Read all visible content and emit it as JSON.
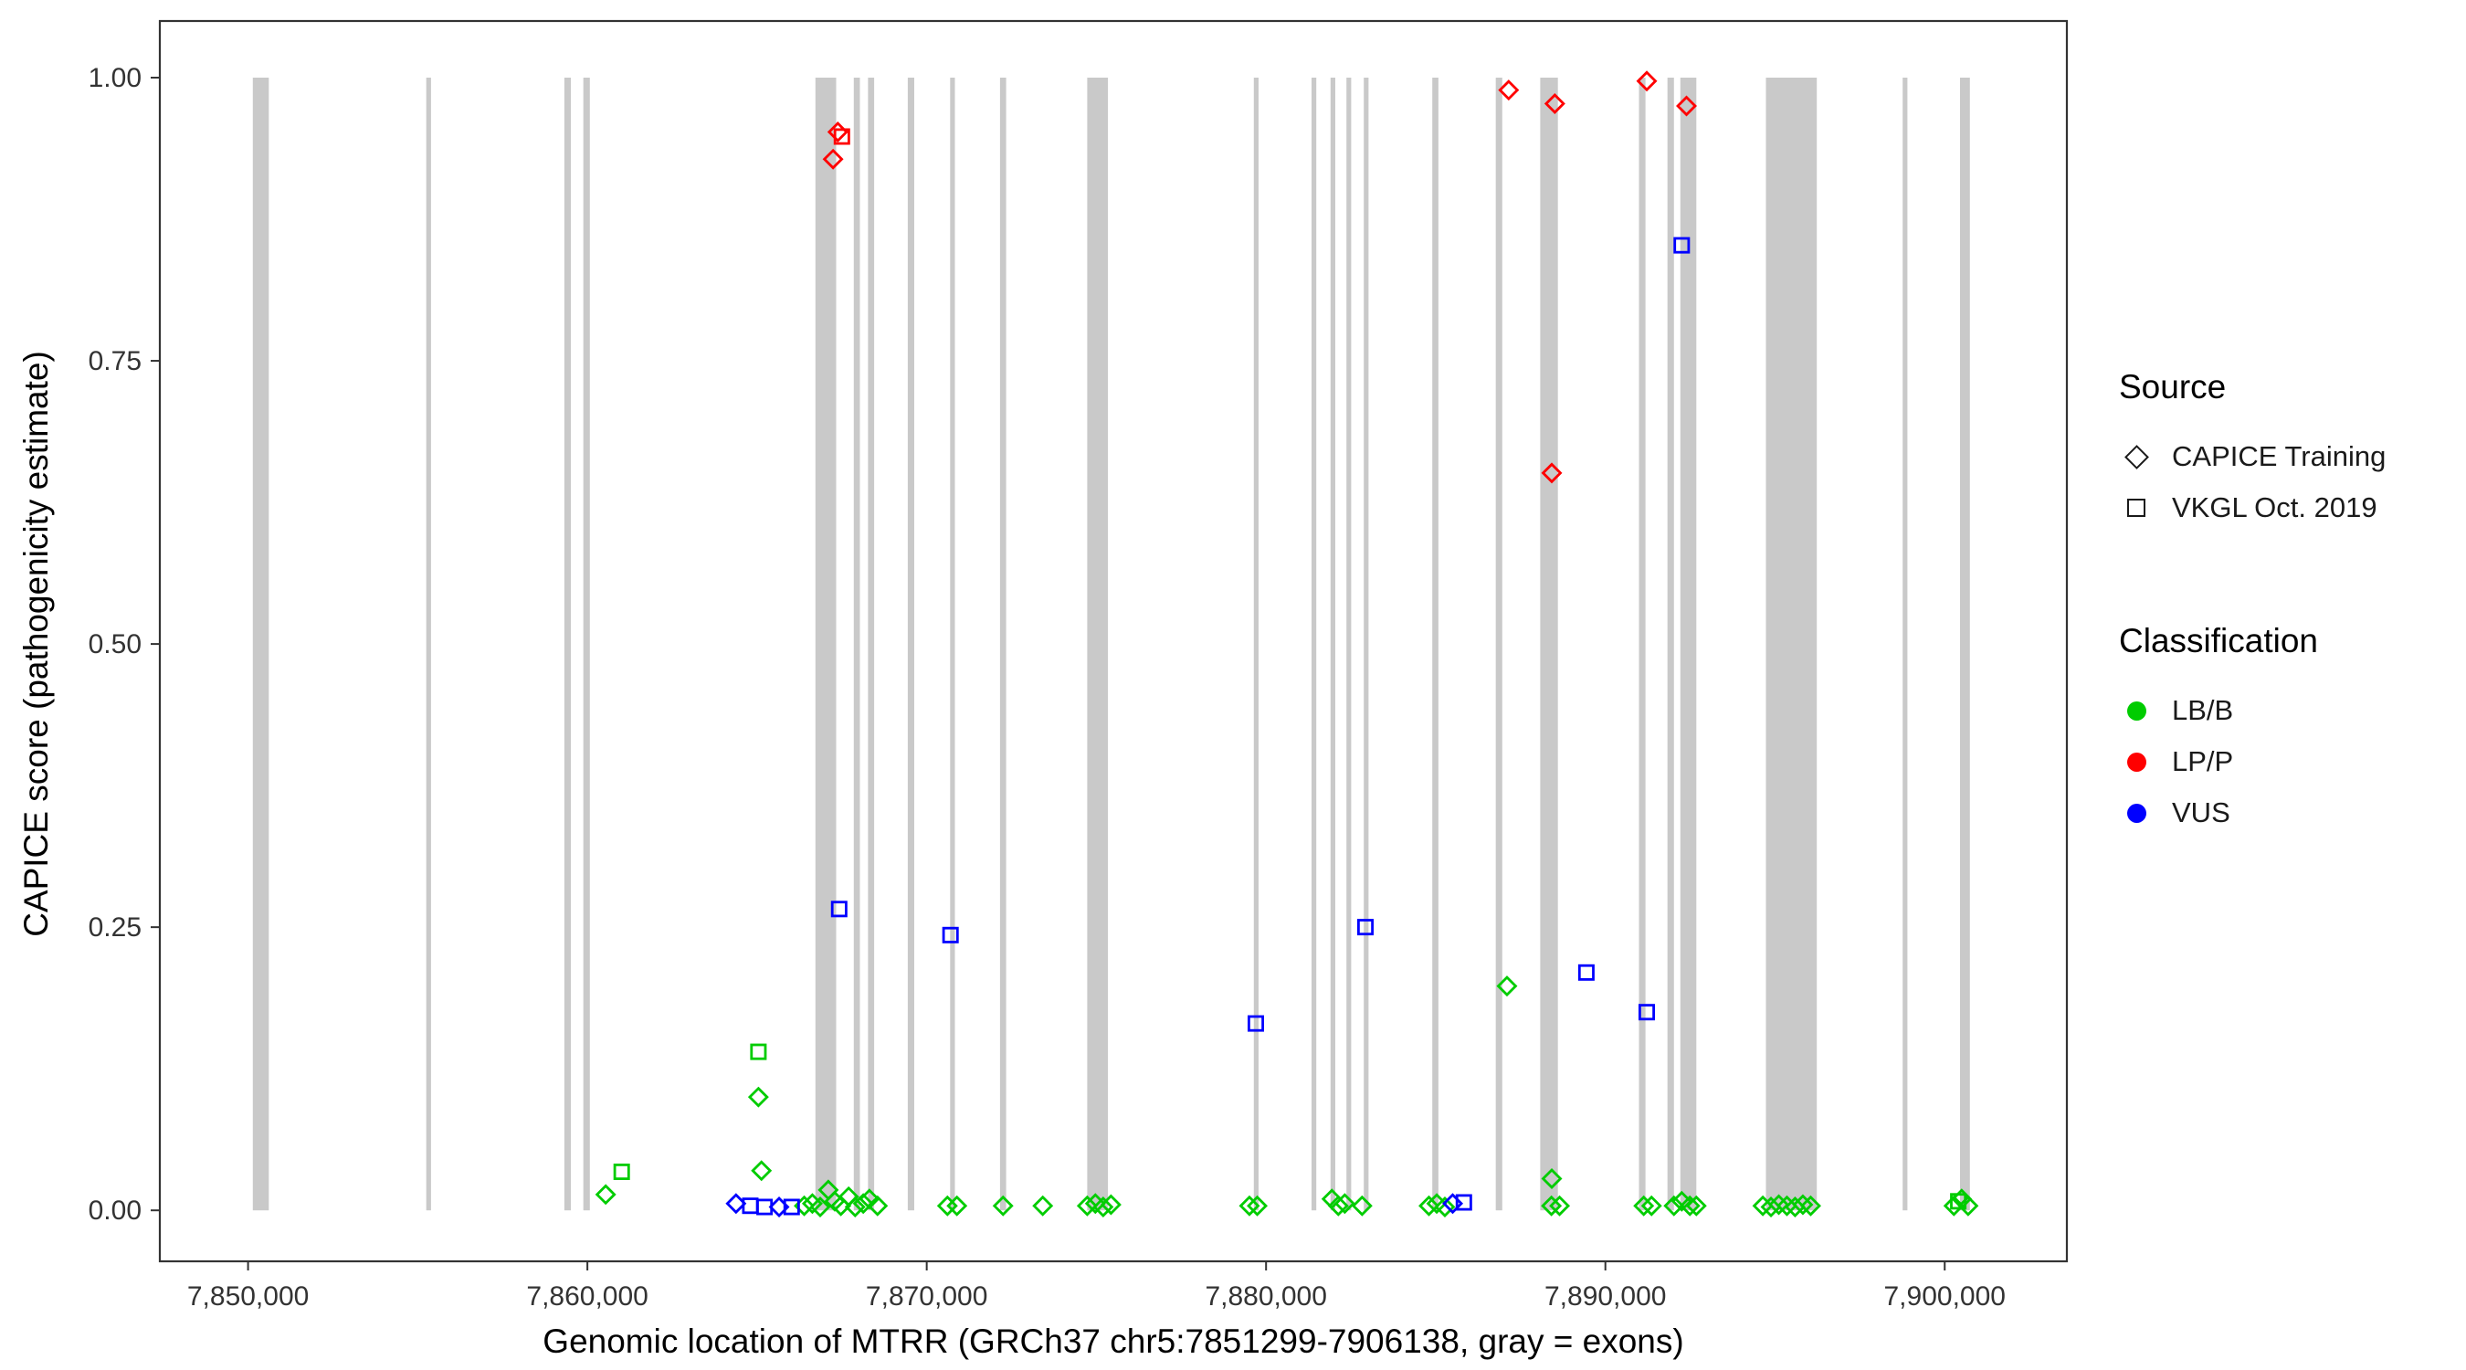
{
  "figure": {
    "type_hint": "scatter plot of variant pathogenicity scores along a gene"
  },
  "legend": {
    "source_title": "Source",
    "source_items": [
      {
        "label": "CAPICE Training",
        "marker": "diamond"
      },
      {
        "label": "VKGL Oct. 2019",
        "marker": "square"
      }
    ],
    "classification_title": "Classification",
    "classification_items": [
      {
        "label": "LB/B",
        "color": "#00CC00"
      },
      {
        "label": "LP/P",
        "color": "#FF0000"
      },
      {
        "label": "VUS",
        "color": "#0000FF"
      }
    ]
  },
  "chart_data": {
    "type": "scatter",
    "title": "",
    "xlabel": "Genomic location of MTRR (GRCh37 chr5:7851299-7906138, gray = exons)",
    "ylabel": "CAPICE score (pathogenicity estimate)",
    "xlim": [
      7847400,
      7903600
    ],
    "ylim": [
      -0.045,
      1.05
    ],
    "grid": false,
    "legend_position": "right",
    "exon_color": "#C9C9C9",
    "panel_border_color": "#333333",
    "x_ticks": [
      {
        "value": 7850000,
        "label": "7,850,000"
      },
      {
        "value": 7860000,
        "label": "7,860,000"
      },
      {
        "value": 7870000,
        "label": "7,870,000"
      },
      {
        "value": 7880000,
        "label": "7,880,000"
      },
      {
        "value": 7890000,
        "label": "7,890,000"
      },
      {
        "value": 7900000,
        "label": "7,900,000"
      }
    ],
    "y_ticks": [
      {
        "value": 0.0,
        "label": "0.00"
      },
      {
        "value": 0.25,
        "label": "0.25"
      },
      {
        "value": 0.5,
        "label": "0.50"
      },
      {
        "value": 0.75,
        "label": "0.75"
      },
      {
        "value": 1.0,
        "label": "1.00"
      }
    ],
    "exons": [
      [
        7850140,
        7850610
      ],
      [
        7855250,
        7855390
      ],
      [
        7859320,
        7859510
      ],
      [
        7859880,
        7860070
      ],
      [
        7866720,
        7867330
      ],
      [
        7867850,
        7868030
      ],
      [
        7868270,
        7868450
      ],
      [
        7869440,
        7869630
      ],
      [
        7870690,
        7870830
      ],
      [
        7872160,
        7872340
      ],
      [
        7874730,
        7875340
      ],
      [
        7879640,
        7879780
      ],
      [
        7881340,
        7881480
      ],
      [
        7881900,
        7882040
      ],
      [
        7882370,
        7882510
      ],
      [
        7882880,
        7883020
      ],
      [
        7884900,
        7885080
      ],
      [
        7886770,
        7886960
      ],
      [
        7888080,
        7888600
      ],
      [
        7890990,
        7891180
      ],
      [
        7891830,
        7892020
      ],
      [
        7892210,
        7892680
      ],
      [
        7894730,
        7896230
      ],
      [
        7898760,
        7898900
      ],
      [
        7900450,
        7900740
      ]
    ],
    "series": [
      {
        "name": "CAPICE Training / LB/B",
        "source": "CAPICE Training",
        "classification": "LB/B",
        "marker": "diamond",
        "color": "#00CC00",
        "points": [
          [
            7860540,
            0.014
          ],
          [
            7865040,
            0.1
          ],
          [
            7865130,
            0.035
          ],
          [
            7866390,
            0.004
          ],
          [
            7866630,
            0.006
          ],
          [
            7866860,
            0.003
          ],
          [
            7867100,
            0.018
          ],
          [
            7867290,
            0.008
          ],
          [
            7867470,
            0.004
          ],
          [
            7867700,
            0.012
          ],
          [
            7867890,
            0.003
          ],
          [
            7868130,
            0.006
          ],
          [
            7868310,
            0.01
          ],
          [
            7868550,
            0.004
          ],
          [
            7870610,
            0.004
          ],
          [
            7870890,
            0.004
          ],
          [
            7872250,
            0.004
          ],
          [
            7873420,
            0.004
          ],
          [
            7874730,
            0.004
          ],
          [
            7874970,
            0.006
          ],
          [
            7875200,
            0.003
          ],
          [
            7875430,
            0.005
          ],
          [
            7879510,
            0.004
          ],
          [
            7879740,
            0.004
          ],
          [
            7881940,
            0.01
          ],
          [
            7882130,
            0.004
          ],
          [
            7882320,
            0.006
          ],
          [
            7882830,
            0.004
          ],
          [
            7884800,
            0.004
          ],
          [
            7885030,
            0.006
          ],
          [
            7885270,
            0.003
          ],
          [
            7887100,
            0.198
          ],
          [
            7888420,
            0.028
          ],
          [
            7888410,
            0.004
          ],
          [
            7888650,
            0.004
          ],
          [
            7891130,
            0.004
          ],
          [
            7891360,
            0.004
          ],
          [
            7892020,
            0.004
          ],
          [
            7892250,
            0.008
          ],
          [
            7892490,
            0.004
          ],
          [
            7892680,
            0.004
          ],
          [
            7894640,
            0.004
          ],
          [
            7894880,
            0.003
          ],
          [
            7895110,
            0.005
          ],
          [
            7895350,
            0.004
          ],
          [
            7895590,
            0.003
          ],
          [
            7895820,
            0.005
          ],
          [
            7896050,
            0.004
          ],
          [
            7900270,
            0.004
          ],
          [
            7900500,
            0.01
          ],
          [
            7900690,
            0.004
          ]
        ]
      },
      {
        "name": "VKGL Oct. 2019 / LB/B",
        "source": "VKGL Oct. 2019",
        "classification": "LB/B",
        "marker": "square",
        "color": "#00CC00",
        "points": [
          [
            7861010,
            0.034
          ],
          [
            7865040,
            0.14
          ],
          [
            7900400,
            0.008
          ]
        ]
      },
      {
        "name": "CAPICE Training / VUS",
        "source": "CAPICE Training",
        "classification": "VUS",
        "marker": "diamond",
        "color": "#0000FF",
        "points": [
          [
            7864380,
            0.006
          ],
          [
            7865650,
            0.003
          ],
          [
            7885500,
            0.006
          ]
        ]
      },
      {
        "name": "VKGL Oct. 2019 / VUS",
        "source": "VKGL Oct. 2019",
        "classification": "VUS",
        "marker": "square",
        "color": "#0000FF",
        "points": [
          [
            7864800,
            0.004
          ],
          [
            7865220,
            0.003
          ],
          [
            7866020,
            0.003
          ],
          [
            7867420,
            0.266
          ],
          [
            7870700,
            0.243
          ],
          [
            7879700,
            0.165
          ],
          [
            7882930,
            0.25
          ],
          [
            7885830,
            0.007
          ],
          [
            7889440,
            0.21
          ],
          [
            7891220,
            0.175
          ],
          [
            7892250,
            0.852
          ]
        ]
      },
      {
        "name": "CAPICE Training / LP/P",
        "source": "CAPICE Training",
        "classification": "LP/P",
        "marker": "diamond",
        "color": "#FF0000",
        "points": [
          [
            7867240,
            0.928
          ],
          [
            7867380,
            0.952
          ],
          [
            7887150,
            0.989
          ],
          [
            7888510,
            0.977
          ],
          [
            7888420,
            0.651
          ],
          [
            7891220,
            0.997
          ],
          [
            7892390,
            0.975
          ]
        ]
      },
      {
        "name": "VKGL Oct. 2019 / LP/P",
        "source": "VKGL Oct. 2019",
        "classification": "LP/P",
        "marker": "square",
        "color": "#FF0000",
        "points": [
          [
            7867500,
            0.948
          ]
        ]
      }
    ]
  }
}
